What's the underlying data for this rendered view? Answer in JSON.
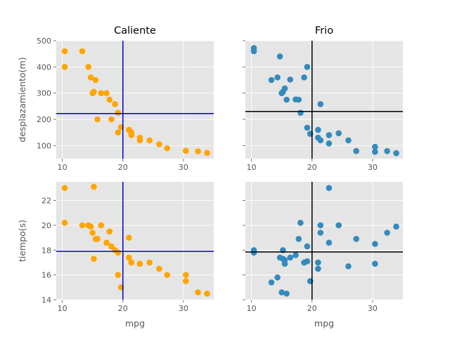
{
  "chart_data": [
    {
      "type": "scatter",
      "title": "Caliente",
      "xlabel": "",
      "ylabel": "desplazamiento(m)",
      "xlim": [
        9,
        35
      ],
      "ylim": [
        50,
        500
      ],
      "xticks": [
        10,
        20,
        30
      ],
      "yticks": [
        100,
        200,
        300,
        400,
        500
      ],
      "grid": true,
      "color": "#ffa500",
      "ref_color": "#0000cc",
      "ref_x": 20,
      "ref_y": 222,
      "x": [
        10.4,
        10.4,
        13.3,
        14.3,
        14.7,
        15.0,
        15.2,
        15.5,
        15.8,
        16.4,
        17.3,
        17.8,
        18.1,
        18.7,
        19.2,
        19.2,
        19.7,
        21.0,
        21.0,
        21.4,
        21.4,
        22.8,
        22.8,
        24.4,
        26.0,
        27.3,
        30.4,
        30.4,
        32.4,
        33.9
      ],
      "y": [
        460,
        400,
        460,
        400,
        360,
        300,
        305,
        350,
        200,
        300,
        300,
        275,
        200,
        258,
        225,
        150,
        170,
        160,
        160,
        150,
        140,
        130,
        120,
        120,
        105,
        90,
        80,
        80,
        78,
        72
      ]
    },
    {
      "type": "scatter",
      "title": "Frio",
      "xlabel": "",
      "ylabel": "",
      "xlim": [
        9,
        35
      ],
      "ylim": [
        50,
        500
      ],
      "xticks": [
        10,
        20,
        30
      ],
      "yticks": [
        100,
        200,
        300,
        400,
        500
      ],
      "grid": true,
      "color": "#348abd",
      "ref_color": "#000000",
      "ref_x": 20,
      "ref_y": 230,
      "x": [
        10.4,
        10.4,
        13.3,
        14.3,
        14.7,
        15.0,
        15.2,
        15.5,
        15.8,
        16.4,
        17.3,
        17.8,
        18.1,
        18.7,
        19.2,
        19.2,
        19.7,
        21.0,
        21.0,
        21.4,
        21.4,
        22.8,
        22.8,
        24.4,
        26.0,
        27.3,
        30.4,
        30.4,
        32.4,
        33.9
      ],
      "y": [
        472,
        460,
        350,
        360,
        440,
        300,
        305,
        318,
        275,
        352,
        276,
        275,
        225,
        360,
        400,
        168,
        145,
        160,
        130,
        258,
        120,
        140,
        108,
        147,
        120,
        79,
        95,
        76,
        79,
        71
      ]
    },
    {
      "type": "scatter",
      "title": "",
      "xlabel": "mpg",
      "ylabel": "tiempo(s)",
      "xlim": [
        9,
        35
      ],
      "ylim": [
        14,
        23.5
      ],
      "xticks": [
        10,
        20,
        30
      ],
      "yticks": [
        14,
        16,
        18,
        20,
        22
      ],
      "grid": true,
      "color": "#ffa500",
      "ref_color": "#0000cc",
      "ref_x": 20,
      "ref_y": 17.9,
      "x": [
        10.4,
        10.4,
        13.3,
        14.3,
        14.7,
        15.0,
        15.2,
        15.2,
        15.5,
        15.8,
        16.4,
        17.3,
        17.8,
        18.1,
        18.7,
        19.2,
        19.2,
        19.7,
        21.0,
        21.0,
        21.4,
        21.4,
        22.8,
        22.8,
        24.4,
        26.0,
        27.3,
        30.4,
        30.4,
        32.4,
        33.9
      ],
      "y": [
        23.0,
        20.2,
        20.0,
        20.0,
        19.9,
        19.4,
        23.1,
        17.3,
        18.9,
        18.9,
        20.0,
        18.6,
        19.5,
        18.3,
        18.0,
        17.8,
        16.0,
        15.0,
        19.0,
        17.4,
        17.0,
        17.0,
        16.9,
        16.9,
        17.0,
        16.5,
        16.0,
        16.0,
        15.5,
        14.6,
        14.5
      ]
    },
    {
      "type": "scatter",
      "title": "",
      "xlabel": "mpg",
      "ylabel": "",
      "xlim": [
        9,
        35
      ],
      "ylim": [
        14,
        23.5
      ],
      "xticks": [
        10,
        20,
        30
      ],
      "yticks": [
        14,
        16,
        18,
        20,
        22
      ],
      "grid": true,
      "color": "#348abd",
      "ref_color": "#000000",
      "ref_x": 20,
      "ref_y": 17.85,
      "x": [
        10.4,
        10.4,
        13.3,
        14.3,
        14.7,
        15.0,
        15.2,
        15.2,
        15.5,
        15.5,
        15.8,
        16.4,
        17.3,
        17.8,
        18.1,
        18.7,
        19.2,
        19.2,
        19.7,
        21.0,
        21.0,
        21.4,
        21.4,
        22.8,
        22.8,
        24.4,
        26.0,
        27.3,
        30.4,
        30.4,
        32.4,
        33.9
      ],
      "y": [
        18.0,
        17.8,
        15.4,
        15.8,
        17.4,
        14.6,
        17.3,
        18.0,
        17.2,
        16.9,
        14.5,
        17.4,
        17.6,
        18.9,
        20.2,
        17.0,
        18.3,
        17.1,
        15.5,
        17.0,
        16.5,
        20.0,
        19.4,
        18.6,
        23.0,
        20.0,
        16.7,
        18.9,
        18.5,
        16.9,
        19.4,
        19.9
      ]
    }
  ]
}
